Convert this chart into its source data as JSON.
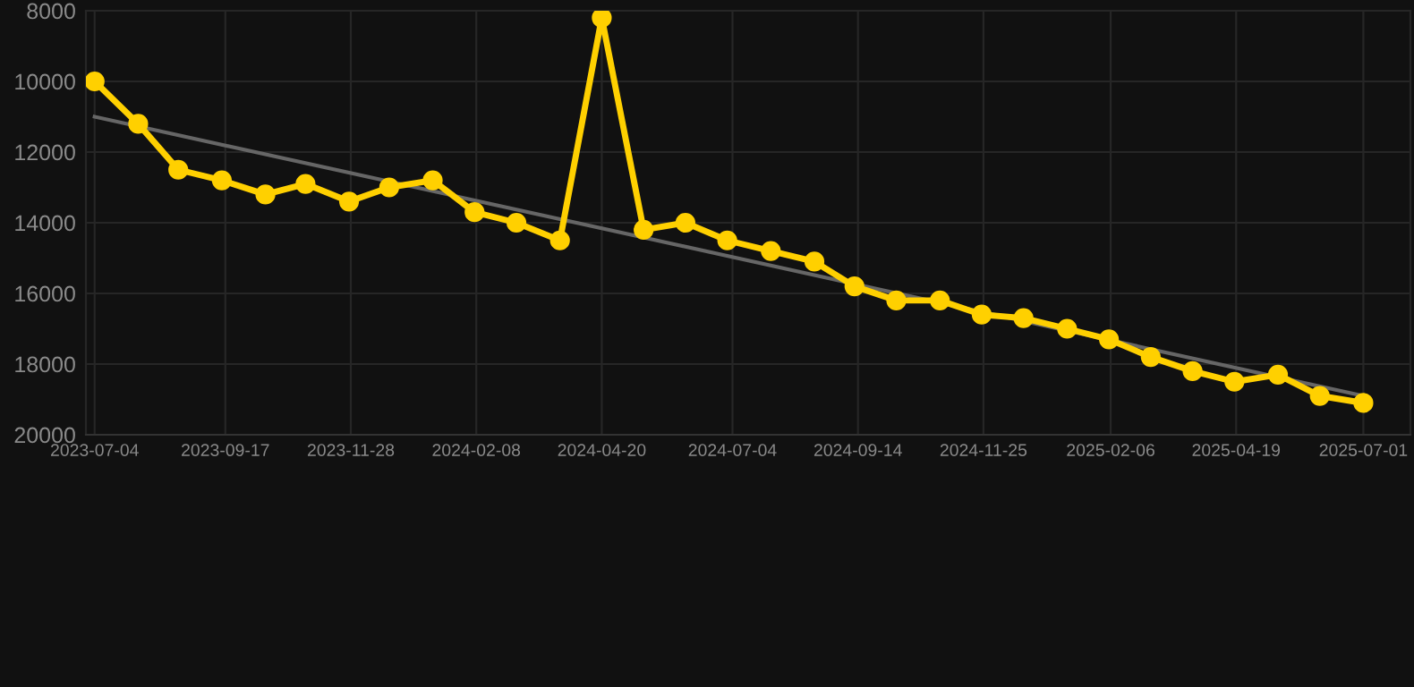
{
  "chart_data": {
    "type": "line",
    "x": [
      "2023-07-04",
      "2023-07-29",
      "2023-08-21",
      "2023-09-15",
      "2023-10-10",
      "2023-11-02",
      "2023-11-27",
      "2023-12-20",
      "2024-01-14",
      "2024-02-07",
      "2024-03-02",
      "2024-03-27",
      "2024-04-20",
      "2024-05-14",
      "2024-06-07",
      "2024-07-01",
      "2024-07-26",
      "2024-08-20",
      "2024-09-12",
      "2024-10-06",
      "2024-10-31",
      "2024-11-24",
      "2024-12-18",
      "2025-01-12",
      "2025-02-05",
      "2025-03-01",
      "2025-03-25",
      "2025-04-18",
      "2025-05-13",
      "2025-06-06",
      "2025-07-01"
    ],
    "series": [
      {
        "color": "#ffd000",
        "marker": "circle",
        "values": [
          10000,
          11200,
          12500,
          12800,
          13200,
          12900,
          13400,
          13000,
          12800,
          13700,
          14000,
          14500,
          8200,
          14200,
          14000,
          14500,
          14800,
          15100,
          15800,
          16200,
          16200,
          16600,
          16700,
          17000,
          17300,
          17800,
          18200,
          18500,
          18300,
          18900,
          19100
        ]
      },
      {
        "type": "line",
        "color": "#666666",
        "marker": "none",
        "x": [
          "2023-07-04",
          "2025-07-01"
        ],
        "values": [
          11000,
          18900
        ]
      }
    ],
    "xlim": [
      "2023-06-29",
      "2025-07-28"
    ],
    "xticks": [
      "2023-07-04",
      "2023-09-17",
      "2023-11-28",
      "2024-02-08",
      "2024-04-20",
      "2024-07-04",
      "2024-09-14",
      "2024-11-25",
      "2025-02-06",
      "2025-04-19",
      "2025-07-01"
    ],
    "ylim": [
      20000,
      8000
    ],
    "yticks": [
      8000,
      10000,
      12000,
      14000,
      16000,
      18000,
      20000
    ],
    "grid": true,
    "line_style": "solid"
  }
}
